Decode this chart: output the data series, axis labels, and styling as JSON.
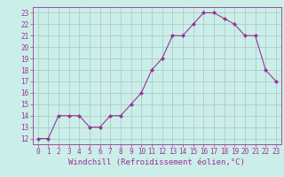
{
  "x": [
    0,
    1,
    2,
    3,
    4,
    5,
    6,
    7,
    8,
    9,
    10,
    11,
    12,
    13,
    14,
    15,
    16,
    17,
    18,
    19,
    20,
    21,
    22,
    23
  ],
  "y": [
    12,
    12,
    14,
    14,
    14,
    13,
    13,
    14,
    14,
    15,
    16,
    18,
    19,
    21,
    21,
    22,
    23,
    23,
    22.5,
    22,
    21,
    21,
    18,
    17
  ],
  "line_color": "#993399",
  "marker": "D",
  "marker_size": 2.0,
  "linewidth": 0.8,
  "background_color": "#cceee8",
  "grid_color": "#aacccc",
  "xlabel": "Windchill (Refroidissement éolien,°C)",
  "xlabel_color": "#993399",
  "ytick_labels": [
    "12",
    "13",
    "14",
    "15",
    "16",
    "17",
    "18",
    "19",
    "20",
    "21",
    "22",
    "23"
  ],
  "ytick_values": [
    12,
    13,
    14,
    15,
    16,
    17,
    18,
    19,
    20,
    21,
    22,
    23
  ],
  "xlim": [
    -0.5,
    23.5
  ],
  "ylim": [
    11.5,
    23.5
  ],
  "tick_color": "#993399",
  "tick_fontsize": 5.5,
  "xlabel_fontsize": 6.5
}
